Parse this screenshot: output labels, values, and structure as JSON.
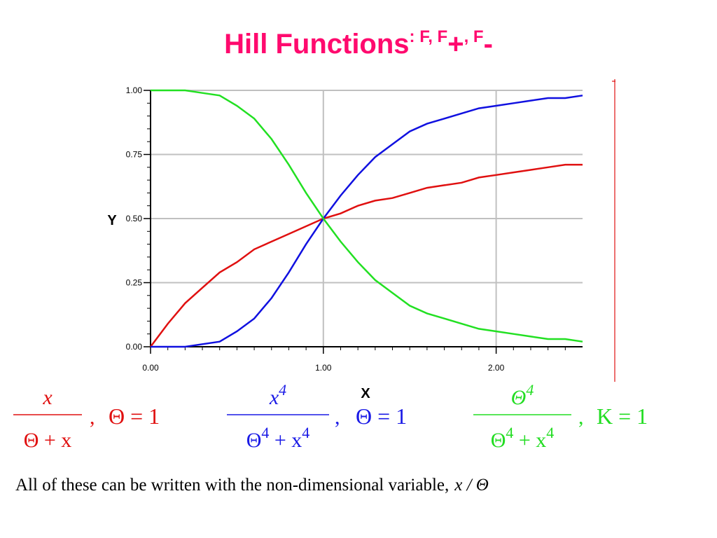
{
  "title": [
    "Hill Functions",
    ": F, F",
    "+",
    ", F",
    "-"
  ],
  "chart_data": {
    "type": "line",
    "x_label": "X",
    "y_label": "Y",
    "x": [
      0,
      0.1,
      0.2,
      0.3,
      0.4,
      0.5,
      0.6,
      0.7,
      0.8,
      0.9,
      1.0,
      1.1,
      1.2,
      1.3,
      1.4,
      1.5,
      1.6,
      1.7,
      1.8,
      1.9,
      2.0,
      2.1,
      2.2,
      2.3,
      2.4,
      2.5
    ],
    "series": [
      {
        "color": "#e01010",
        "values": [
          0,
          0.09,
          0.17,
          0.23,
          0.29,
          0.33,
          0.38,
          0.41,
          0.44,
          0.47,
          0.5,
          0.52,
          0.55,
          0.57,
          0.58,
          0.6,
          0.62,
          0.63,
          0.64,
          0.66,
          0.67,
          0.68,
          0.69,
          0.7,
          0.71,
          0.71
        ]
      },
      {
        "color": "#1010e0",
        "values": [
          0,
          0,
          0,
          0.01,
          0.02,
          0.06,
          0.11,
          0.19,
          0.29,
          0.4,
          0.5,
          0.59,
          0.67,
          0.74,
          0.79,
          0.84,
          0.87,
          0.89,
          0.91,
          0.93,
          0.94,
          0.95,
          0.96,
          0.97,
          0.97,
          0.98
        ]
      },
      {
        "color": "#22e022",
        "values": [
          1,
          1,
          1,
          0.99,
          0.98,
          0.94,
          0.89,
          0.81,
          0.71,
          0.6,
          0.5,
          0.41,
          0.33,
          0.26,
          0.21,
          0.16,
          0.13,
          0.11,
          0.09,
          0.07,
          0.06,
          0.05,
          0.04,
          0.03,
          0.03,
          0.02
        ]
      }
    ],
    "xlim": [
      0,
      2.5
    ],
    "ylim": [
      0,
      1
    ],
    "xticks": [
      {
        "value": 0,
        "label": "0.00"
      },
      {
        "value": 1,
        "label": "1.00"
      },
      {
        "value": 2,
        "label": "2.00"
      }
    ],
    "yticks": [
      {
        "value": 0,
        "label": "0.00"
      },
      {
        "value": 0.25,
        "label": "0.25"
      },
      {
        "value": 0.5,
        "label": "0.50"
      },
      {
        "value": 0.75,
        "label": "0.75"
      },
      {
        "value": 1,
        "label": "1.00"
      }
    ],
    "grid": true
  },
  "formulas": [
    {
      "color": "#e01010",
      "numerator": [
        "x"
      ],
      "denominator": [
        "Θ + x"
      ],
      "separator": ",",
      "condition": "Θ = 1"
    },
    {
      "color": "#1a1ae6",
      "numerator": [
        "x",
        "4"
      ],
      "denominator": [
        "Θ",
        "4",
        " + x",
        "4"
      ],
      "separator": ",",
      "condition": "Θ = 1"
    },
    {
      "color": "#22dd22",
      "numerator": [
        "Θ",
        "4"
      ],
      "denominator": [
        "Θ",
        "4",
        " + x",
        "4"
      ],
      "separator": ",",
      "condition": "K = 1"
    }
  ],
  "footer": {
    "text": "All of these can be written with the non-dimensional variable,",
    "variable": "x / Θ"
  }
}
